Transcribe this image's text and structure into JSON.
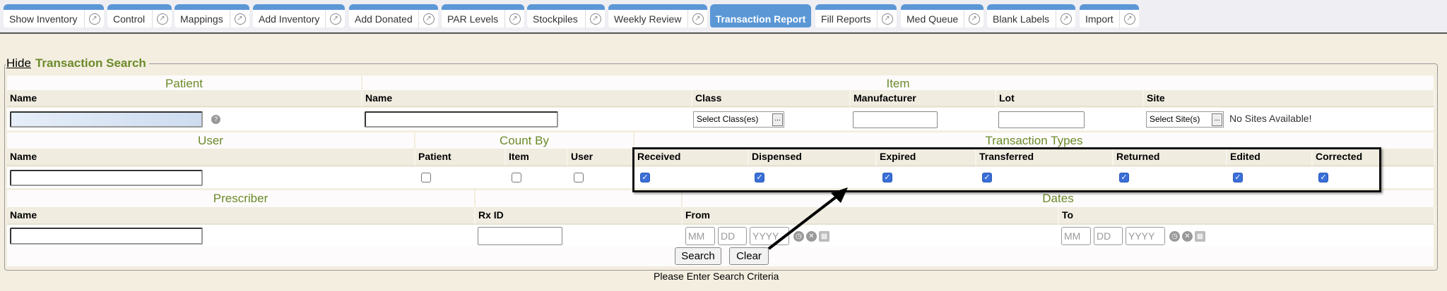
{
  "tabs": [
    {
      "label": "Show Inventory"
    },
    {
      "label": "Control"
    },
    {
      "label": "Mappings"
    },
    {
      "label": "Add Inventory"
    },
    {
      "label": "Add Donated"
    },
    {
      "label": "PAR Levels"
    },
    {
      "label": "Stockpiles"
    },
    {
      "label": "Weekly Review"
    },
    {
      "label": "Transaction Report",
      "active": true
    },
    {
      "label": "Fill Reports"
    },
    {
      "label": "Med Queue"
    },
    {
      "label": "Blank Labels"
    },
    {
      "label": "Import"
    }
  ],
  "search": {
    "hide_link": "Hide",
    "title": "Transaction Search",
    "patient": {
      "header": "Patient",
      "name_label": "Name",
      "name_value": ""
    },
    "item": {
      "header": "Item",
      "name_label": "Name",
      "class_label": "Class",
      "class_select": "Select Class(es)",
      "manufacturer_label": "Manufacturer",
      "lot_label": "Lot",
      "site_label": "Site",
      "site_select": "Select Site(s)",
      "site_note": "No Sites Available!",
      "browse": "..."
    },
    "user": {
      "header": "User",
      "name_label": "Name"
    },
    "count_by": {
      "header": "Count By",
      "options": [
        {
          "label": "Patient",
          "checked": false
        },
        {
          "label": "Item",
          "checked": false
        },
        {
          "label": "User",
          "checked": false
        }
      ]
    },
    "transaction_types": {
      "header": "Transaction Types",
      "options": [
        {
          "label": "Received",
          "checked": true
        },
        {
          "label": "Dispensed",
          "checked": true
        },
        {
          "label": "Expired",
          "checked": true
        },
        {
          "label": "Transferred",
          "checked": true
        },
        {
          "label": "Returned",
          "checked": true
        },
        {
          "label": "Edited",
          "checked": true
        },
        {
          "label": "Corrected",
          "checked": true
        }
      ]
    },
    "prescriber": {
      "header": "Prescriber",
      "name_label": "Name"
    },
    "rx": {
      "label": "Rx ID"
    },
    "dates": {
      "header": "Dates",
      "from_label": "From",
      "to_label": "To",
      "mm": "MM",
      "dd": "DD",
      "yyyy": "YYYY"
    },
    "search_button": "Search",
    "clear_button": "Clear"
  },
  "status": "Please Enter Search Criteria",
  "colors": {
    "accent": "#5b97d5",
    "header_text": "#6b8a2a",
    "background": "#f3eee0"
  }
}
